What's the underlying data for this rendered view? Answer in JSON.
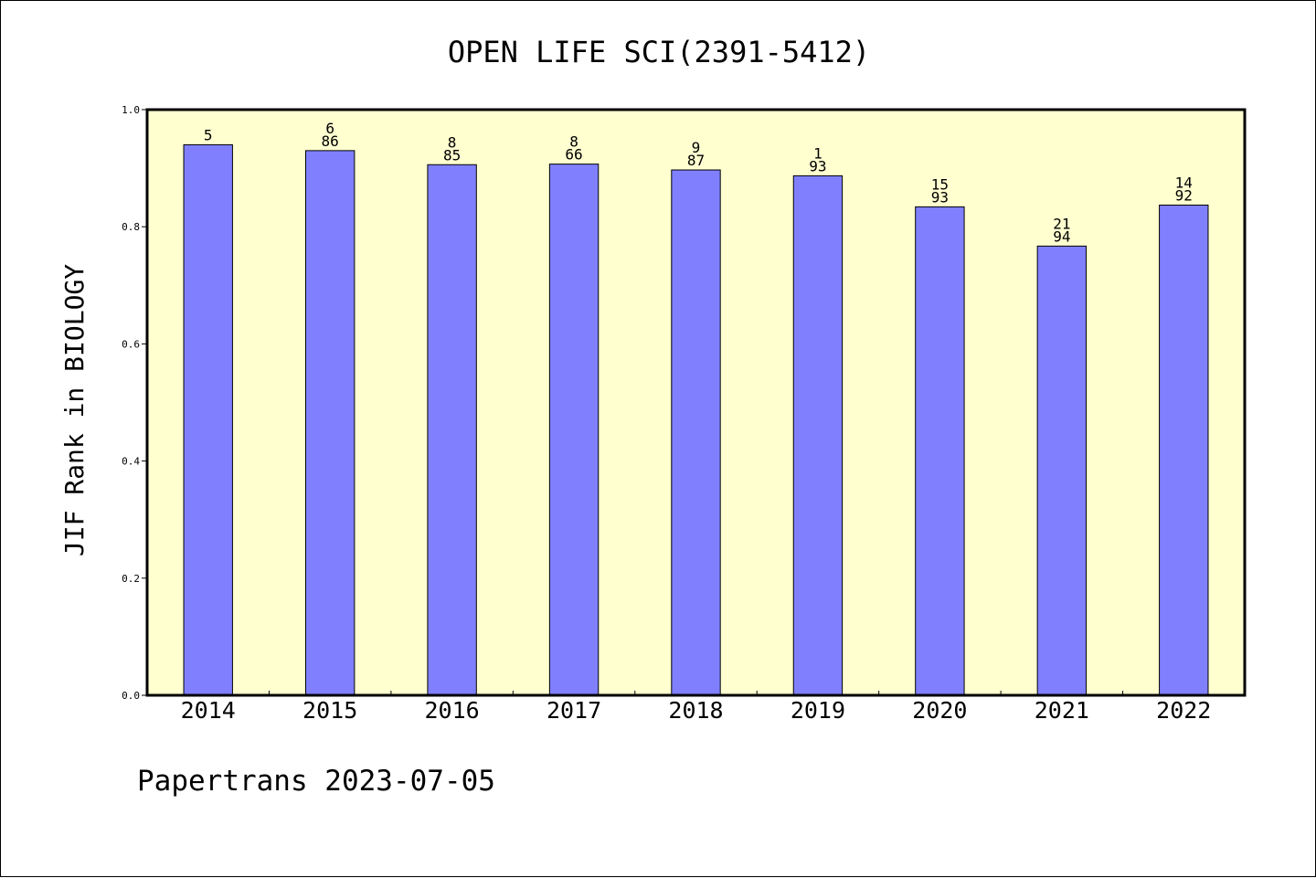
{
  "chart_data": {
    "type": "bar",
    "title": "OPEN LIFE SCI(2391-5412)",
    "xlabel": "",
    "ylabel": "JIF Rank in BIOLOGY",
    "ylim": [
      0,
      1.0
    ],
    "yticks": [
      "0.0",
      "0.2",
      "0.4",
      "0.6",
      "0.8",
      "1.0"
    ],
    "grid": false,
    "categories": [
      "2014",
      "2015",
      "2016",
      "2017",
      "2018",
      "2019",
      "2020",
      "2021",
      "2022"
    ],
    "values": [
      0.94,
      0.93,
      0.906,
      0.907,
      0.897,
      0.887,
      0.834,
      0.767,
      0.837
    ],
    "bar_labels": [
      [
        "5"
      ],
      [
        "6",
        "86"
      ],
      [
        "8",
        "85"
      ],
      [
        "8",
        "66"
      ],
      [
        "9",
        "87"
      ],
      [
        "1",
        "93"
      ],
      [
        "15",
        "93"
      ],
      [
        "21",
        "94"
      ],
      [
        "14",
        "92"
      ]
    ],
    "colors": {
      "bar_fill": "#8080ff",
      "plot_background": "#ffffd0",
      "axis": "#000000"
    }
  },
  "footer": "Papertrans 2023-07-05"
}
